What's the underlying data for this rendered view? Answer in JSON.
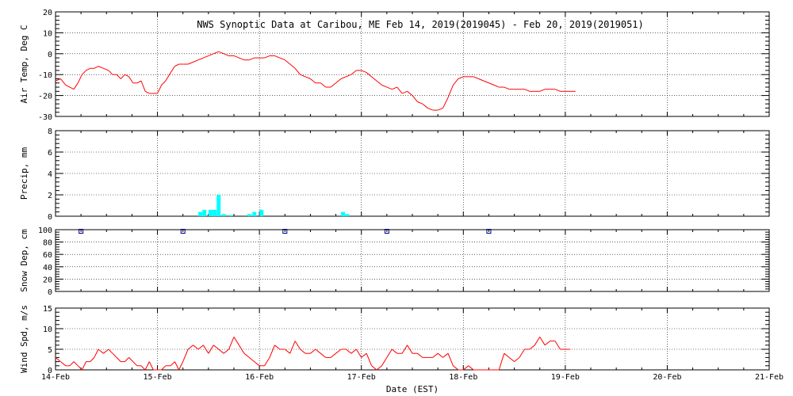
{
  "title": "NWS Synoptic Data at Caribou, ME   Feb 14, 2019(2019045) - Feb 20, 2019(2019051)",
  "xlabel": "Date (EST)",
  "x_ticks": [
    "14-Feb",
    "15-Feb",
    "16-Feb",
    "17-Feb",
    "18-Feb",
    "19-Feb",
    "20-Feb",
    "21-Feb"
  ],
  "colors": {
    "temp": "#ff0000",
    "precip": "#00ffff",
    "snow": "#000080",
    "wind": "#ff0000"
  },
  "chart_data": [
    {
      "type": "line",
      "ylabel": "Air Temp, Deg C",
      "ylim": [
        -30,
        20
      ],
      "y_ticks": [
        "20",
        "10",
        "0",
        "-10",
        "-20",
        "-30"
      ],
      "x_range_days": [
        0,
        7
      ],
      "grid": true,
      "x": [
        0.0,
        0.05,
        0.1,
        0.14,
        0.18,
        0.22,
        0.26,
        0.3,
        0.34,
        0.38,
        0.42,
        0.47,
        0.52,
        0.56,
        0.6,
        0.64,
        0.68,
        0.72,
        0.76,
        0.8,
        0.84,
        0.88,
        0.92,
        0.96,
        1.0,
        1.04,
        1.08,
        1.13,
        1.17,
        1.21,
        1.25,
        1.3,
        1.35,
        1.4,
        1.45,
        1.5,
        1.55,
        1.6,
        1.65,
        1.7,
        1.75,
        1.8,
        1.85,
        1.9,
        1.95,
        2.0,
        2.05,
        2.1,
        2.15,
        2.2,
        2.25,
        2.3,
        2.35,
        2.4,
        2.45,
        2.5,
        2.55,
        2.6,
        2.65,
        2.7,
        2.75,
        2.8,
        2.85,
        2.9,
        2.95,
        3.0,
        3.05,
        3.1,
        3.15,
        3.2,
        3.25,
        3.3,
        3.35,
        3.4,
        3.45,
        3.5,
        3.55,
        3.6,
        3.65,
        3.7,
        3.75,
        3.8,
        3.85,
        3.9,
        3.95,
        4.0,
        4.05,
        4.1,
        4.15,
        4.2,
        4.25,
        4.3,
        4.35,
        4.4,
        4.45,
        4.5,
        4.55,
        4.6,
        4.65,
        4.7,
        4.75,
        4.8,
        4.85,
        4.9,
        4.95,
        5.0,
        5.05,
        5.1
      ],
      "series": [
        {
          "values": [
            -13,
            -12,
            -15,
            -16,
            -17,
            -14,
            -10,
            -8,
            -7,
            -7,
            -6,
            -7,
            -8,
            -10,
            -10,
            -12,
            -10,
            -11,
            -14,
            -14,
            -13,
            -18,
            -19,
            -19,
            -19,
            -15,
            -13,
            -9,
            -6,
            -5,
            -5,
            -5,
            -4,
            -3,
            -2,
            -1,
            0,
            1,
            0,
            -1,
            -1,
            -2,
            -3,
            -3,
            -2,
            -2,
            -2,
            -1,
            -1,
            -2,
            -3,
            -5,
            -7,
            -10,
            -11,
            -12,
            -14,
            -14,
            -16,
            -16,
            -14,
            -12,
            -11,
            -10,
            -8,
            -8,
            -9,
            -11,
            -13,
            -15,
            -16,
            -17,
            -16,
            -19,
            -18,
            -20,
            -23,
            -24,
            -26,
            -27,
            -27,
            -26,
            -21,
            -15,
            -12,
            -11,
            -11,
            -11,
            -12,
            -13,
            -14,
            -15,
            -16,
            -16,
            -17,
            -17,
            -17,
            -17,
            -18,
            -18,
            -18,
            -17,
            -17,
            -17,
            -18,
            -18,
            -18,
            -18
          ]
        }
      ]
    },
    {
      "type": "bar",
      "ylabel": "Precip, mm",
      "ylim": [
        0,
        8
      ],
      "y_ticks": [
        "8",
        "6",
        "4",
        "2",
        "0"
      ],
      "grid": true,
      "x": [
        1.42,
        1.46,
        1.52,
        1.56,
        1.6,
        1.65,
        1.72,
        1.9,
        1.95,
        2.02,
        2.82,
        2.86
      ],
      "values": [
        0.4,
        0.6,
        0.6,
        0.6,
        2.0,
        0.2,
        0.1,
        0.2,
        0.4,
        0.6,
        0.4,
        0.2
      ]
    },
    {
      "type": "scatter",
      "ylabel": "Snow Dep, cm",
      "ylim": [
        0,
        100
      ],
      "y_ticks": [
        "100",
        "80",
        "60",
        "40",
        "20",
        "0"
      ],
      "grid": true,
      "x": [
        0.25,
        1.25,
        2.25,
        3.25,
        4.25
      ],
      "values": [
        98,
        98,
        98,
        100,
        98
      ]
    },
    {
      "type": "line",
      "ylabel": "Wind Spd, m/s",
      "ylim": [
        0,
        15
      ],
      "y_ticks": [
        "15",
        "10",
        "5",
        "0"
      ],
      "grid": true,
      "x": [
        0.0,
        0.05,
        0.1,
        0.14,
        0.18,
        0.22,
        0.26,
        0.3,
        0.34,
        0.38,
        0.42,
        0.47,
        0.52,
        0.56,
        0.6,
        0.64,
        0.68,
        0.72,
        0.76,
        0.8,
        0.84,
        0.88,
        0.92,
        0.96,
        1.0,
        1.04,
        1.08,
        1.13,
        1.17,
        1.21,
        1.25,
        1.3,
        1.35,
        1.4,
        1.45,
        1.5,
        1.55,
        1.6,
        1.65,
        1.7,
        1.75,
        1.8,
        1.85,
        1.9,
        1.95,
        2.0,
        2.05,
        2.1,
        2.15,
        2.2,
        2.25,
        2.3,
        2.35,
        2.4,
        2.45,
        2.5,
        2.55,
        2.6,
        2.65,
        2.7,
        2.75,
        2.8,
        2.85,
        2.9,
        2.95,
        3.0,
        3.05,
        3.1,
        3.15,
        3.2,
        3.25,
        3.3,
        3.35,
        3.4,
        3.45,
        3.5,
        3.55,
        3.6,
        3.65,
        3.7,
        3.75,
        3.8,
        3.85,
        3.9,
        3.95,
        4.0,
        4.05,
        4.1,
        4.15,
        4.2,
        4.25,
        4.3,
        4.35,
        4.4,
        4.45,
        4.5,
        4.55,
        4.6,
        4.65,
        4.7,
        4.75,
        4.8,
        4.85,
        4.9,
        4.95,
        5.0,
        5.05
      ],
      "series": [
        {
          "values": [
            3,
            2,
            1,
            1,
            2,
            1,
            0,
            2,
            2,
            3,
            5,
            4,
            5,
            4,
            3,
            2,
            2,
            3,
            2,
            1,
            1,
            0,
            2,
            0,
            0,
            0,
            1,
            1,
            2,
            0,
            2,
            5,
            6,
            5,
            6,
            4,
            6,
            5,
            4,
            5,
            8,
            6,
            4,
            3,
            2,
            1,
            1,
            3,
            6,
            5,
            5,
            4,
            7,
            5,
            4,
            4,
            5,
            4,
            3,
            3,
            4,
            5,
            5,
            4,
            5,
            3,
            4,
            1,
            0,
            1,
            3,
            5,
            4,
            4,
            6,
            4,
            4,
            3,
            3,
            3,
            4,
            3,
            4,
            1,
            0,
            0,
            1,
            0,
            0,
            0,
            0,
            0,
            0,
            4,
            3,
            2,
            3,
            5,
            5,
            6,
            8,
            6,
            7,
            7,
            5,
            5,
            5
          ]
        }
      ]
    }
  ]
}
